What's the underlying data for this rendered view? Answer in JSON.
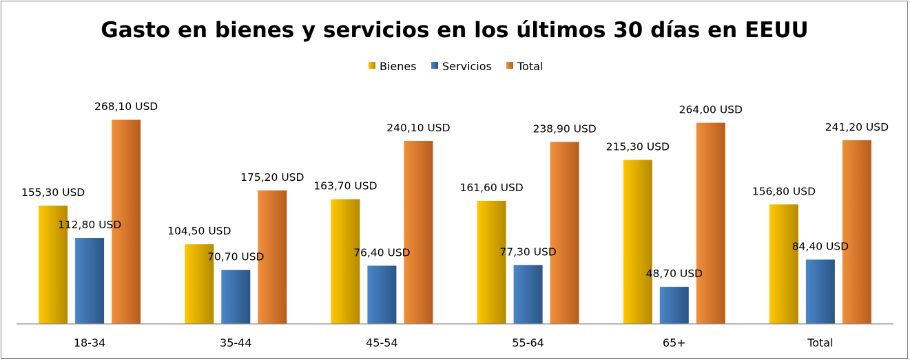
{
  "chart_data": {
    "type": "bar",
    "title": "Gasto en bienes y servicios en los últimos 30 días en EEUU",
    "xlabel": "",
    "ylabel": "",
    "ylim": [
      0,
      300
    ],
    "grid": false,
    "legend_position": "top",
    "categories": [
      "18-34",
      "35-44",
      "45-54",
      "55-64",
      "65+",
      "Total"
    ],
    "series": [
      {
        "name": "Bienes",
        "color": "#e8b400",
        "values": [
          155.3,
          104.5,
          163.7,
          161.6,
          215.3,
          156.8
        ],
        "labels": [
          "155,30 USD",
          "104,50 USD",
          "163,70 USD",
          "161,60 USD",
          "215,30 USD",
          "156,80 USD"
        ]
      },
      {
        "name": "Servicios",
        "color": "#3a6ea5",
        "values": [
          112.8,
          70.7,
          76.4,
          77.3,
          48.7,
          84.4
        ],
        "labels": [
          "112,80 USD",
          "70,70 USD",
          "76,40 USD",
          "77,30 USD",
          "48,70 USD",
          "84,40 USD"
        ]
      },
      {
        "name": "Total",
        "color": "#e0782e",
        "values": [
          268.1,
          175.2,
          240.1,
          238.9,
          264.0,
          241.2
        ],
        "labels": [
          "268,10 USD",
          "175,20 USD",
          "240,10 USD",
          "238,90 USD",
          "264,00 USD",
          "241,20 USD"
        ]
      }
    ]
  }
}
